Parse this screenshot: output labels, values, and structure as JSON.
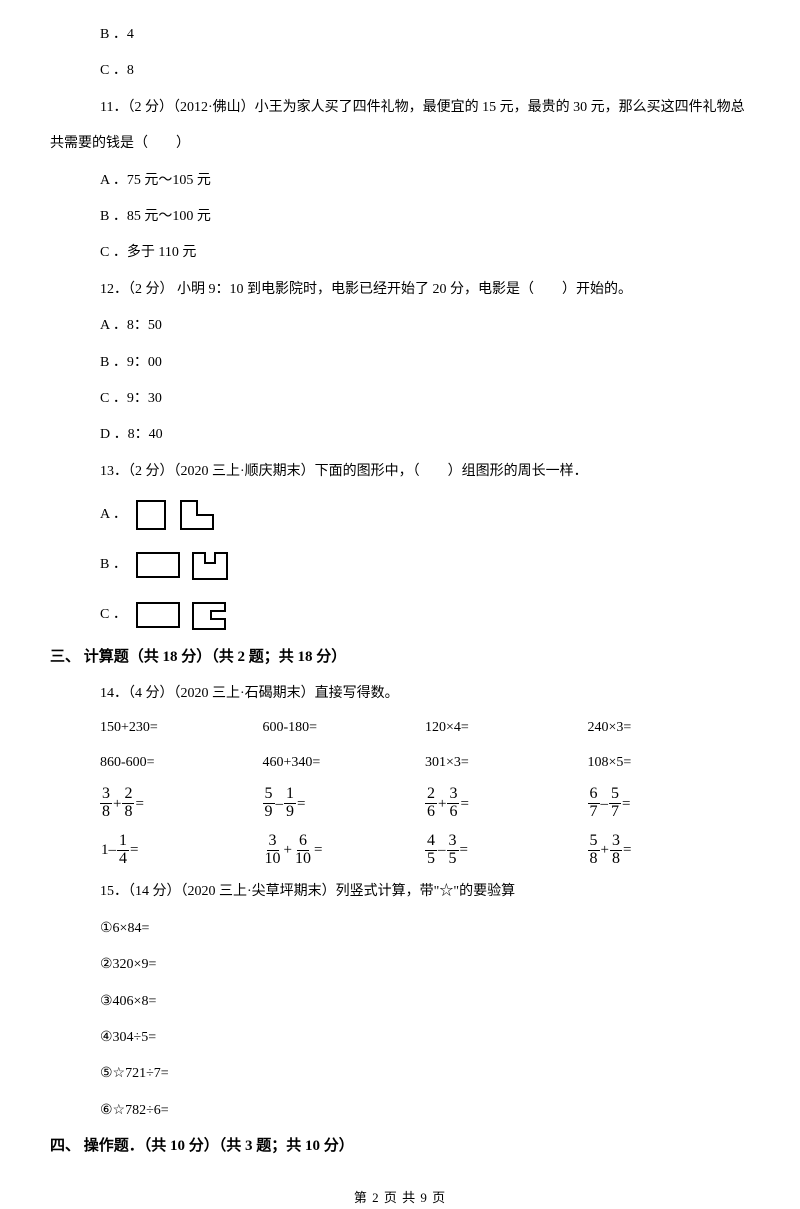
{
  "q10": {
    "optB": "B ．4",
    "optC": "C ．8"
  },
  "q11": {
    "stem": "11．（2 分）（2012·佛山）小王为家人买了四件礼物，最便宜的 15 元，最贵的 30 元，那么买这四件礼物总",
    "stem2": "共需要的钱是（　　）",
    "optA": "A ．75 元～105 元",
    "optB": "B ．85 元～100 元",
    "optC": "C ．多于 110 元"
  },
  "q12": {
    "stem": "12．（2 分） 小明 9：10 到电影院时，电影已经开始了 20 分，电影是（　　）开始的。",
    "optA": "A ．8：50",
    "optB": "B ．9：00",
    "optC": "C ．9：30",
    "optD": "D ．8：40"
  },
  "q13": {
    "stem": "13．（2 分）（2020 三上·顺庆期末）下面的图形中，（　　）组图形的周长一样．",
    "labelA": "A ．",
    "labelB": "B ．",
    "labelC": "C ．"
  },
  "sec3": "三、 计算题（共 18 分）（共 2 题；共 18 分）",
  "q14": {
    "stem": "14．（4 分）（2020 三上·石碣期末）直接写得数。",
    "r1": [
      "150+230=",
      "600-180=",
      "120×4=",
      "240×3="
    ],
    "r2": [
      "860-600=",
      "460+340=",
      "301×3=",
      "108×5="
    ],
    "fr1": [
      {
        "a": "3",
        "b": "8",
        "op": "+",
        "c": "2",
        "d": "8"
      },
      {
        "a": "5",
        "b": "9",
        "op": "–",
        "c": "1",
        "d": "9"
      },
      {
        "a": "2",
        "b": "6",
        "op": "+",
        "c": "3",
        "d": "6"
      },
      {
        "a": "6",
        "b": "7",
        "op": "–",
        "c": "5",
        "d": "7"
      }
    ],
    "fr2": [
      {
        "pre": "1–",
        "a": "1",
        "b": "4"
      },
      {
        "a": "3",
        "b": "10",
        "op": "+",
        "c": "6",
        "d": "10"
      },
      {
        "a": "4",
        "b": "5",
        "op": "–",
        "c": "3",
        "d": "5"
      },
      {
        "a": "5",
        "b": "8",
        "op": "+",
        "c": "3",
        "d": "8"
      }
    ]
  },
  "q15": {
    "stem": "15．（14 分）（2020 三上·尖草坪期末）列竖式计算，带\"☆\"的要验算",
    "items": [
      "①6×84=",
      "②320×9=",
      "③406×8=",
      "④304÷5=",
      "⑤☆721÷7=",
      "⑥☆782÷6="
    ]
  },
  "sec4": "四、 操作题．（共 10 分）（共 3 题；共 10 分）",
  "footer": "第 2 页 共 9 页",
  "shapes": {
    "stroke": "#000000",
    "strokeWidth": 2,
    "bg": "#ffffff"
  }
}
